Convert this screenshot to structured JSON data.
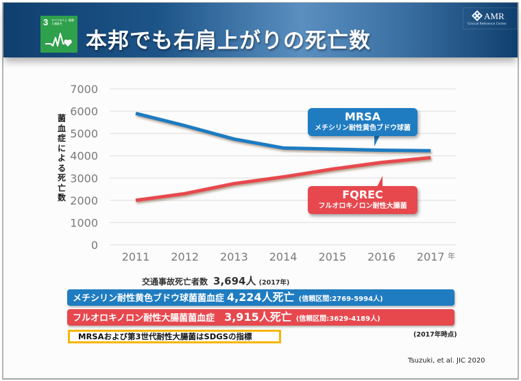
{
  "header": {
    "title": "本邦でも右肩上がりの死亡数",
    "sdg_badge": {
      "number": "3",
      "text": "すべての人に 健康と福祉を",
      "icon": "heartbeat-heart-icon",
      "color": "#2fa04b"
    },
    "logo": {
      "icon": "amr-diamond-logo-icon",
      "name": "AMR",
      "subtitle": "Clinical Reference Center"
    },
    "colors": {
      "banner": "#1d5488"
    }
  },
  "chart_data": {
    "type": "line",
    "title": "",
    "xlabel": "年",
    "ylabel": "菌血症による死亡数",
    "categories": [
      "2011",
      "2012",
      "2013",
      "2014",
      "2015",
      "2016",
      "2017"
    ],
    "yticks": [
      "7000",
      "6000",
      "5000",
      "4000",
      "3000",
      "2000",
      "1000",
      "0"
    ],
    "ylim": [
      0,
      7000
    ],
    "grid": true,
    "series": [
      {
        "name": "MRSA",
        "color": "#1f7cc1",
        "values": [
          5900,
          5350,
          4750,
          4350,
          4300,
          4250,
          4224
        ]
      },
      {
        "name": "FQREC",
        "color": "#e6484e",
        "values": [
          2000,
          2300,
          2750,
          3050,
          3400,
          3700,
          3915
        ]
      }
    ],
    "annotations": [
      {
        "series": "MRSA",
        "title": "MRSA",
        "subtitle": "メチシリン耐性黄色ブドウ球菌"
      },
      {
        "series": "FQREC",
        "title": "FQREC",
        "subtitle": "フルオロキノロン耐性大腸菌"
      }
    ]
  },
  "traffic": {
    "label": "交通事故死亡者数",
    "value": "3,694人",
    "year": "(2017年)"
  },
  "bars": [
    {
      "label": "メチシリン耐性黄色ブドウ球菌菌血症",
      "value": "4,224人死亡",
      "ci": "(信頼区間:2769-5994人)",
      "color": "#1f7cc1"
    },
    {
      "label": "フルオロキノロン耐性大腸菌菌血症",
      "value": "3,915人死亡",
      "ci": "(信頼区間:3629-4189人)",
      "color": "#e6484e"
    }
  ],
  "as_of": "(2017年時点)",
  "sdg_note": "MRSAおよび第3世代耐性大腸菌はSDGSの指標",
  "citation": "Tsuzuki, et al. JIC 2020"
}
